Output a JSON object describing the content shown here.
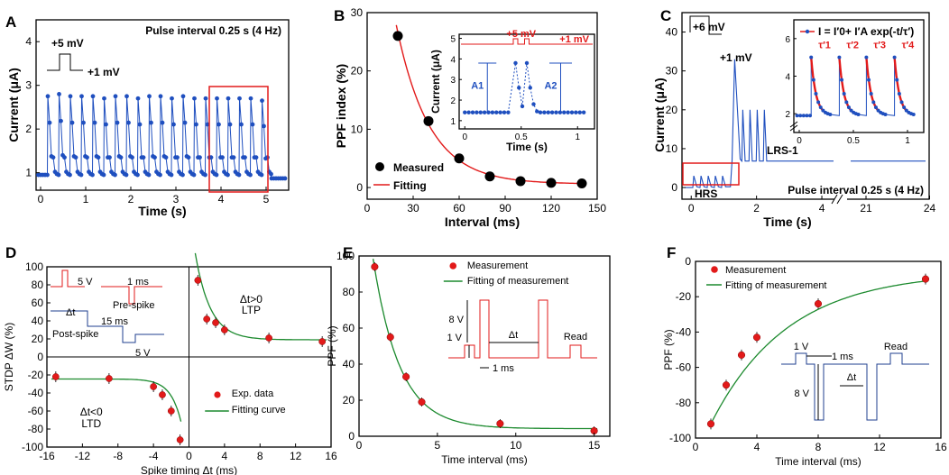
{
  "colors": {
    "blue": "#1f4fbf",
    "red": "#e21a1a",
    "green": "#1c8a2e",
    "black": "#000000"
  },
  "panels": {
    "A": {
      "letter": "A",
      "title": "Pulse interval 0.25 s (4 Hz)",
      "xlabel": "Time (s)",
      "ylabel": "Current (μA)",
      "pulse_high": "+5 mV",
      "pulse_low": "+1 mV"
    },
    "B": {
      "letter": "B",
      "xlabel": "Interval (ms)",
      "ylabel": "PPF index (%)",
      "legend_measured": "Measured",
      "legend_fitting": "Fitting",
      "inset_xlabel": "Time (s)",
      "inset_ylabel": "Current (μA)",
      "inset_high": "+5 mV",
      "inset_low": "+1 mV",
      "a1": "A1",
      "a2": "A2"
    },
    "C": {
      "letter": "C",
      "pulse_high": "+6 mV",
      "pulse_low": "+1 mV",
      "xlabel": "Time (s)",
      "ylabel": "Current (μA)",
      "hrs": "HRS",
      "lrs": "LRS-1",
      "title": "Pulse interval 0.25 s (4 Hz)",
      "fit_eq": "I = I′0+ I′A exp(-t/τ′)",
      "taus": [
        "τ′1",
        "τ′2",
        "τ′3",
        "τ′4"
      ]
    },
    "D": {
      "letter": "D",
      "xlabel": "Spike timing Δt (ms)",
      "ylabel": "STDP ΔW (%)",
      "ltp_cond": "Δt>0",
      "ltp": "LTP",
      "ltd_cond": "Δt<0",
      "ltd": "LTD",
      "legend_exp": "Exp. data",
      "legend_fit": "Fitting curve",
      "post_spike": "Post-spike",
      "pre_spike": "Pre-spike",
      "v5": "5 V",
      "v5b": "5 V",
      "ms1": "1 ms",
      "ms15": "15 ms",
      "dt": "Δt"
    },
    "E": {
      "letter": "E",
      "xlabel": "Time interval (ms)",
      "ylabel": "PPF (%)",
      "legend_meas": "Measurement",
      "legend_fit": "Fitting of measurement",
      "v8": "8 V",
      "v1": "1 V",
      "dt": "Δt",
      "ms1": "1 ms",
      "read": "Read"
    },
    "F": {
      "letter": "F",
      "xlabel": "Time interval (ms)",
      "ylabel": "PPF (%)",
      "legend_meas": "Measurement",
      "legend_fit": "Fitting of measurement",
      "v1": "1 V",
      "v8": "8 V",
      "dt": "Δt",
      "ms1": "1 ms",
      "read": "Read"
    }
  },
  "chart_data": [
    {
      "id": "A",
      "type": "line",
      "title": "Pulse interval 0.25 s (4 Hz)",
      "xlabel": "Time (s)",
      "ylabel": "Current (μA)",
      "x_ticks": [
        0,
        1,
        2,
        3,
        4,
        5
      ],
      "y_ticks": [
        1,
        2,
        3,
        4
      ],
      "xlim": [
        -0.1,
        5.5
      ],
      "ylim": [
        0.6,
        4.5
      ],
      "pulse_start_s": [
        0.15,
        0.4,
        0.65,
        0.9,
        1.15,
        1.4,
        1.65,
        1.9,
        2.15,
        2.4,
        2.65,
        2.9,
        3.15,
        3.4,
        3.65,
        3.9,
        4.15,
        4.4,
        4.65,
        4.9
      ],
      "pulse_peaks_uA": [
        2.75,
        2.8,
        2.75,
        2.75,
        2.75,
        2.7,
        2.75,
        2.75,
        2.7,
        2.75,
        2.75,
        2.7,
        2.75,
        2.7,
        2.7,
        2.7,
        2.7,
        2.7,
        2.7,
        2.65
      ],
      "baseline_uA": 0.95
    },
    {
      "id": "B",
      "type": "scatter",
      "xlabel": "Interval (ms)",
      "ylabel": "PPF index (%)",
      "x_ticks": [
        0,
        30,
        60,
        90,
        120,
        150
      ],
      "y_ticks": [
        0,
        10,
        20,
        30
      ],
      "xlim": [
        0,
        150
      ],
      "ylim": [
        -2,
        30
      ],
      "x": [
        20,
        40,
        60,
        80,
        100,
        120,
        140
      ],
      "y": [
        26,
        11.4,
        5,
        1.9,
        1.1,
        0.8,
        0.7
      ],
      "fit": {
        "y0": 0.6,
        "A": 66,
        "tau_ms": 21.5
      },
      "inset": {
        "x_ticks": [
          0,
          0.5,
          1
        ],
        "y_ticks": [
          1,
          2,
          3,
          4,
          5
        ],
        "xlim": [
          -0.05,
          1.15
        ],
        "ylim": [
          0.6,
          5.2
        ],
        "baseline_uA": 1.4,
        "peak1_uA": 3.8,
        "peak2_uA": 3.8,
        "t1_s": 0.45,
        "t2_s": 0.55
      }
    },
    {
      "id": "C",
      "type": "line",
      "xlabel": "Time (s)",
      "ylabel": "Current (μA)",
      "x_ticks": [
        0,
        2,
        4,
        21,
        24
      ],
      "y_ticks": [
        0,
        10,
        20,
        30,
        40
      ],
      "ylim": [
        -3,
        45
      ],
      "hrs_peaks_uA": [
        3,
        3,
        3,
        3,
        3
      ],
      "first_peak_uA": 33,
      "later_peaks_uA": [
        20,
        20,
        20,
        20
      ],
      "lrs_level_uA": 6.8,
      "inset": {
        "x_ticks": [
          0,
          0.5,
          1
        ],
        "y_ticks": [
          2,
          4,
          6
        ],
        "xlim": [
          -0.05,
          1.15
        ],
        "ylim": [
          1,
          7
        ],
        "peaks_uA": [
          5.0,
          5.0,
          5.0,
          5.0
        ],
        "baseline_uA": 1.9,
        "tau_s": 0.045
      }
    },
    {
      "id": "D",
      "type": "scatter",
      "xlabel": "Spike timing Δt (ms)",
      "ylabel": "STDP ΔW (%)",
      "x_ticks": [
        -16,
        -12,
        -8,
        -4,
        0,
        4,
        8,
        12,
        16
      ],
      "y_ticks": [
        -100,
        -80,
        -60,
        -40,
        -20,
        0,
        20,
        40,
        60,
        80,
        100
      ],
      "xlim": [
        -16,
        16
      ],
      "ylim": [
        -100,
        100
      ],
      "ltp": {
        "x": [
          1,
          2,
          3,
          4,
          9,
          15
        ],
        "y": [
          85,
          42,
          38,
          30,
          21,
          17
        ]
      },
      "ltd": {
        "x": [
          -15,
          -9,
          -4,
          -3,
          -2,
          -1
        ],
        "y": [
          -22,
          -24,
          -33,
          -42,
          -60,
          -92
        ]
      },
      "fit": {
        "ltp": {
          "c": 19,
          "A": 145,
          "tau_ms": 1.7
        },
        "ltd": {
          "c": -24.5,
          "A": -100,
          "tau_ms": 1.2
        }
      }
    },
    {
      "id": "E",
      "type": "scatter",
      "xlabel": "Time interval (ms)",
      "ylabel": "PPF (%)",
      "x_ticks": [
        0,
        5,
        10,
        15
      ],
      "y_ticks": [
        0,
        20,
        40,
        60,
        80,
        100
      ],
      "xlim": [
        0,
        16
      ],
      "ylim": [
        -2,
        100
      ],
      "x": [
        1,
        2,
        3,
        4,
        9,
        15
      ],
      "y": [
        94,
        55,
        33,
        19,
        7,
        3
      ],
      "fit": {
        "c": 4.2,
        "A": 160,
        "tau_ms": 1.7
      }
    },
    {
      "id": "F",
      "type": "scatter",
      "xlabel": "Time interval (ms)",
      "ylabel": "PPF (%)",
      "x_ticks": [
        0,
        4,
        8,
        12,
        16
      ],
      "y_ticks": [
        -100,
        -80,
        -60,
        -40,
        -20,
        0
      ],
      "xlim": [
        0,
        16
      ],
      "ylim": [
        -100,
        0
      ],
      "x": [
        1,
        2,
        3,
        4,
        8,
        15
      ],
      "y": [
        -92,
        -70,
        -53,
        -43,
        -24,
        -10
      ]
    }
  ]
}
